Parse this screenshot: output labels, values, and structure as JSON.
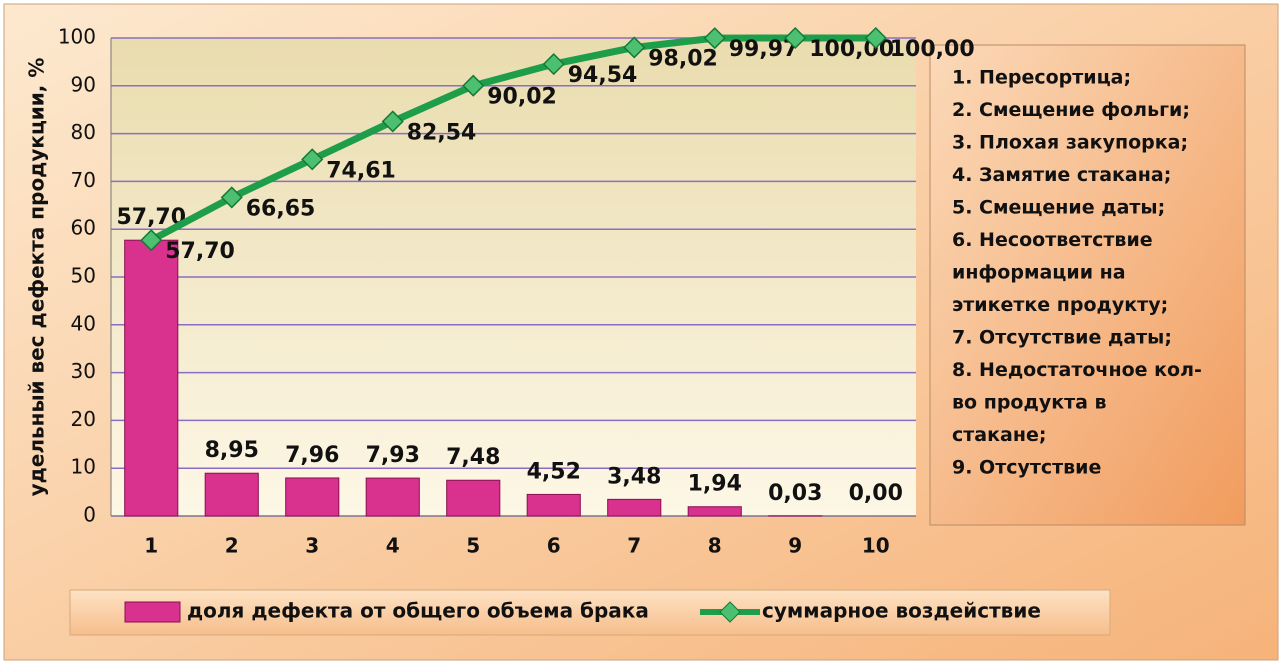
{
  "chart_data": {
    "type": "combo",
    "y_label": "удельный вес дефекта продукции, %",
    "categories": [
      "1",
      "2",
      "3",
      "4",
      "5",
      "6",
      "7",
      "8",
      "9",
      "10"
    ],
    "series": [
      {
        "name": "доля дефекта от общего объема брака",
        "type": "bar",
        "color": "#d8318e",
        "values": [
          57.7,
          8.95,
          7.96,
          7.93,
          7.48,
          4.52,
          3.48,
          1.94,
          0.03,
          0.0
        ],
        "value_labels": [
          "57,70",
          "8,95",
          "7,96",
          "7,93",
          "7,48",
          "4,52",
          "3,48",
          "1,94",
          "0,03",
          "0,00"
        ]
      },
      {
        "name": "суммарное воздействие",
        "type": "line",
        "color": "#1e9e4a",
        "values": [
          57.7,
          66.65,
          74.61,
          82.54,
          90.02,
          94.54,
          98.02,
          99.97,
          100.0,
          100.0
        ],
        "value_labels": [
          "57,70",
          "66,65",
          "74,61",
          "82,54",
          "90,02",
          "94,54",
          "98,02",
          "99,97",
          "100,00",
          "100,00"
        ]
      }
    ],
    "ylim": [
      0,
      100
    ],
    "yticks": [
      0,
      10,
      20,
      30,
      40,
      50,
      60,
      70,
      80,
      90,
      100
    ],
    "grid": true,
    "grid_color": "#8c6cc4",
    "annotations": [
      "1. Пересортица;",
      "2. Смещение фольги;",
      "3. Плохая закупорка;",
      "4. Замятие стакана;",
      "5. Смещение даты;",
      "6. Несоответствие",
      "информации на",
      "этикетке продукту;",
      "7. Отсутствие даты;",
      "8. Недостаточное кол-",
      "во продукта в",
      "стакане;",
      "9. Отсутствие"
    ]
  }
}
